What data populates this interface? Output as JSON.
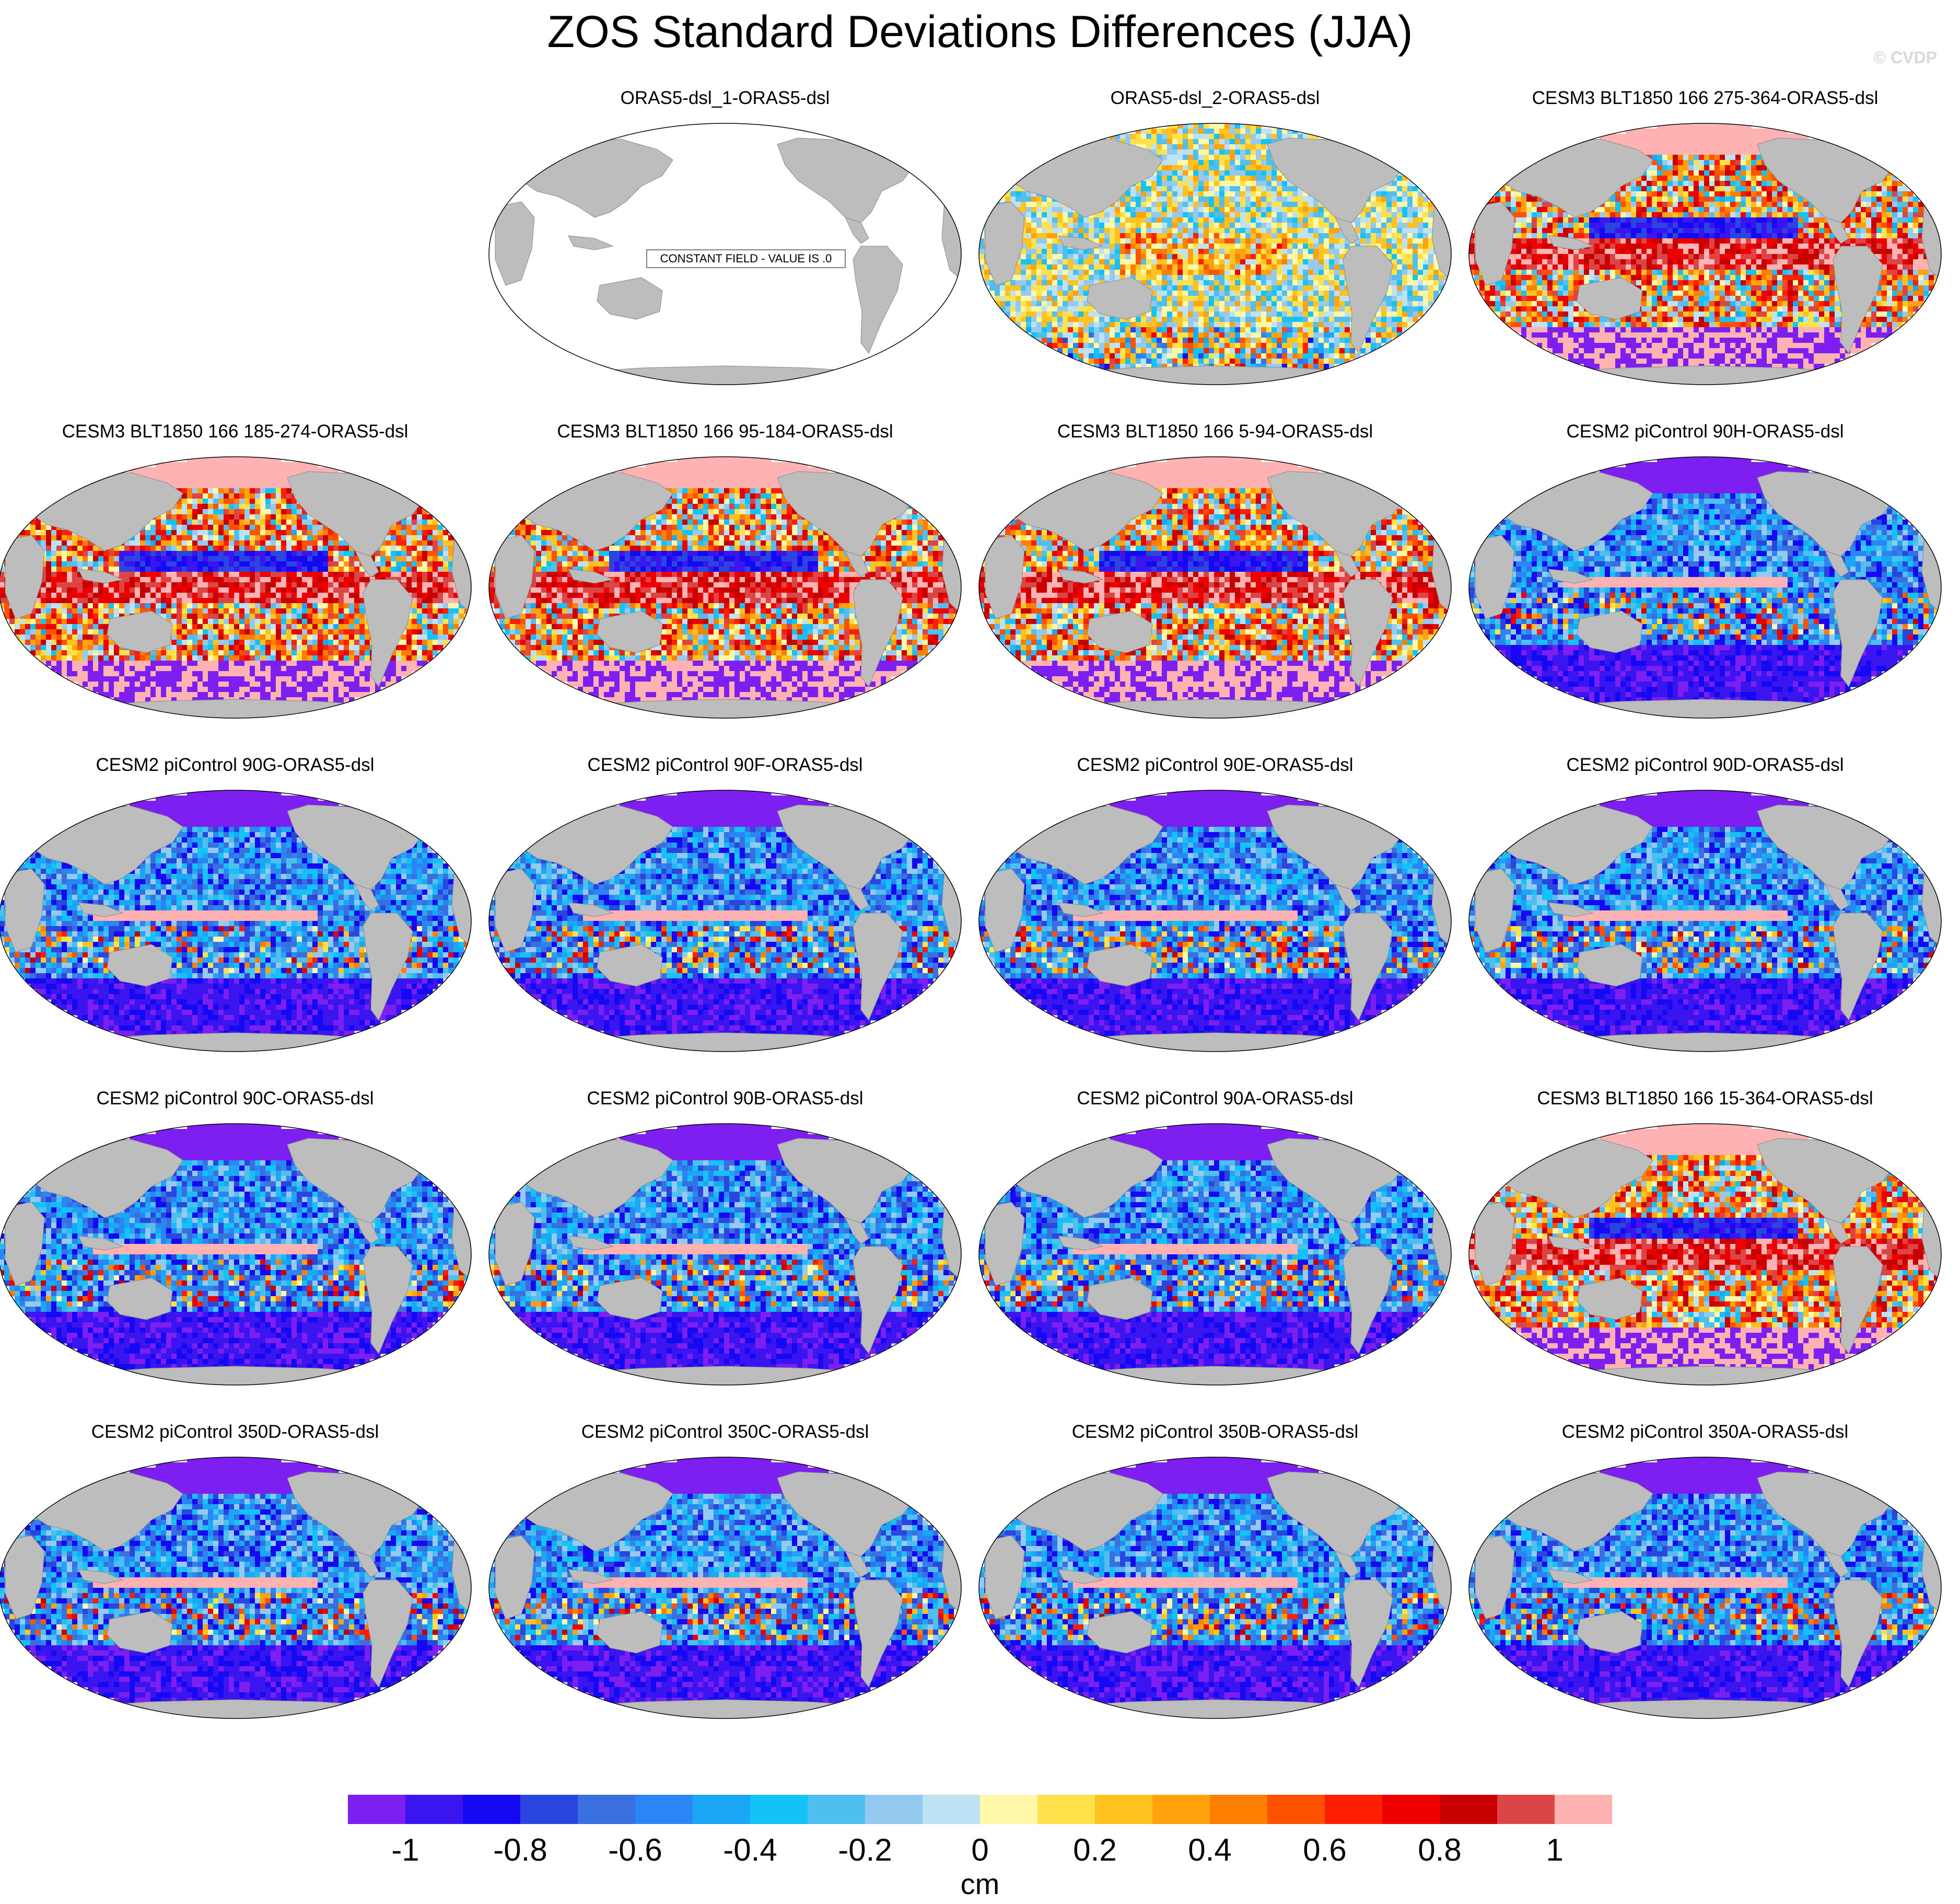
{
  "title": "ZOS Standard Deviations Differences (JJA)",
  "watermark": "© CVDP",
  "colorbar": {
    "unit": "cm",
    "colors": [
      "#7c1ff0",
      "#3b15f0",
      "#1409f2",
      "#2b46df",
      "#3a6fe0",
      "#2b86f5",
      "#1aa7f5",
      "#13c3f7",
      "#4fbff0",
      "#95caf0",
      "#bde2f4",
      "#fff8a8",
      "#ffe24b",
      "#ffc21e",
      "#ffa20c",
      "#ff8000",
      "#ff5200",
      "#ff1e00",
      "#ee0000",
      "#c80000",
      "#dc4545",
      "#ffb2b2"
    ],
    "tick_labels": [
      "-1",
      "-0.8",
      "-0.6",
      "-0.4",
      "-0.2",
      "0",
      "0.2",
      "0.4",
      "0.6",
      "0.8",
      "1"
    ]
  },
  "chart_data": {
    "type": "heatmap",
    "projection": "Robinson (Pacific-centered)",
    "levels": [
      -1.0,
      -0.9,
      -0.8,
      -0.7,
      -0.6,
      -0.5,
      -0.4,
      -0.3,
      -0.2,
      -0.1,
      0.0,
      0.1,
      0.2,
      0.3,
      0.4,
      0.5,
      0.6,
      0.7,
      0.8,
      0.9,
      1.0
    ],
    "panels": [
      {
        "title": "ORAS5-dsl_1-ORAS5-dsl",
        "pattern": "constant",
        "note": "CONSTANT FIELD - VALUE IS .0"
      },
      {
        "title": "ORAS5-dsl_2-ORAS5-dsl",
        "pattern": "near-zero"
      },
      {
        "title": "CESM3 BLT1850 166 275-364-ORAS5-dsl",
        "pattern": "cesm3"
      },
      {
        "title": "CESM3 BLT1850 166 185-274-ORAS5-dsl",
        "pattern": "cesm3"
      },
      {
        "title": "CESM3 BLT1850 166 95-184-ORAS5-dsl",
        "pattern": "cesm3"
      },
      {
        "title": "CESM3 BLT1850 166 5-94-ORAS5-dsl",
        "pattern": "cesm3"
      },
      {
        "title": "CESM2 piControl 90H-ORAS5-dsl",
        "pattern": "cesm2"
      },
      {
        "title": "CESM2 piControl 90G-ORAS5-dsl",
        "pattern": "cesm2"
      },
      {
        "title": "CESM2 piControl 90F-ORAS5-dsl",
        "pattern": "cesm2"
      },
      {
        "title": "CESM2 piControl 90E-ORAS5-dsl",
        "pattern": "cesm2"
      },
      {
        "title": "CESM2 piControl 90D-ORAS5-dsl",
        "pattern": "cesm2"
      },
      {
        "title": "CESM2 piControl 90C-ORAS5-dsl",
        "pattern": "cesm2"
      },
      {
        "title": "CESM2 piControl 90B-ORAS5-dsl",
        "pattern": "cesm2"
      },
      {
        "title": "CESM2 piControl 90A-ORAS5-dsl",
        "pattern": "cesm2"
      },
      {
        "title": "CESM3 BLT1850 166 15-364-ORAS5-dsl",
        "pattern": "cesm3"
      },
      {
        "title": "CESM2 piControl 350D-ORAS5-dsl",
        "pattern": "cesm2"
      },
      {
        "title": "CESM2 piControl 350C-ORAS5-dsl",
        "pattern": "cesm2"
      },
      {
        "title": "CESM2 piControl 350B-ORAS5-dsl",
        "pattern": "cesm2"
      },
      {
        "title": "CESM2 piControl 350A-ORAS5-dsl",
        "pattern": "cesm2"
      }
    ]
  }
}
